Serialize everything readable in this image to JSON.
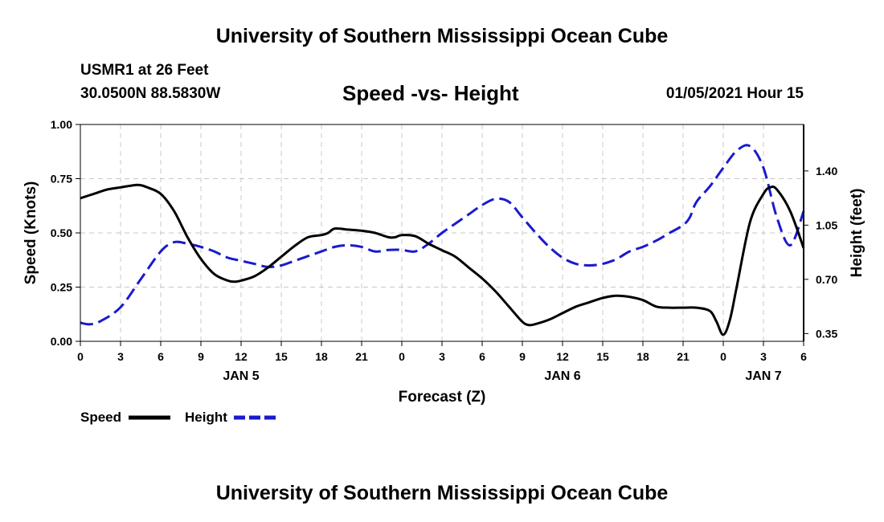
{
  "header": {
    "top_title": "University of Southern Mississippi Ocean Cube",
    "station": "USMR1 at 26 Feet",
    "coords": "30.0500N 88.5830W",
    "date": "01/05/2021 Hour 15",
    "bottom_title": "University of Southern Mississippi Ocean Cube"
  },
  "chart_data": {
    "type": "line",
    "title": "Speed -vs- Height",
    "xlabel": "Forecast (Z)",
    "ylabel": "Speed (Knots)",
    "y2label": "Height (feet)",
    "xlim": [
      0,
      54
    ],
    "ylim": [
      0,
      1.0
    ],
    "y2lim": [
      0.3,
      1.7
    ],
    "x_ticks": [
      0,
      3,
      6,
      9,
      12,
      15,
      18,
      21,
      24,
      27,
      30,
      33,
      36,
      39,
      42,
      45,
      48,
      51,
      54
    ],
    "x_tick_labels": [
      "0",
      "3",
      "6",
      "9",
      "12",
      "15",
      "18",
      "21",
      "0",
      "3",
      "6",
      "9",
      "12",
      "15",
      "18",
      "21",
      "0",
      "3",
      "6"
    ],
    "day_labels": [
      {
        "x": 12,
        "label": "JAN 5"
      },
      {
        "x": 36,
        "label": "JAN 6"
      },
      {
        "x": 51,
        "label": "JAN 7"
      }
    ],
    "y_ticks": [
      0,
      0.25,
      0.5,
      0.75,
      1.0
    ],
    "y_tick_labels": [
      "0.00",
      "0.25",
      "0.50",
      "0.75",
      "1.00"
    ],
    "y2_ticks": [
      0.35,
      0.7,
      1.05,
      1.4
    ],
    "y2_tick_labels": [
      "0.35",
      "0.70",
      "1.05",
      "1.40"
    ],
    "grid": true,
    "legend": [
      {
        "label": "Speed",
        "color": "#000000",
        "style": "solid"
      },
      {
        "label": "Height",
        "color": "#1a1acc",
        "style": "dashed"
      }
    ],
    "series": [
      {
        "name": "Speed",
        "axis": "left",
        "color": "#000000",
        "dash": "solid",
        "x": [
          0,
          1,
          2,
          3,
          4,
          4.5,
          5,
          6,
          7,
          8,
          9,
          10,
          11,
          11.5,
          12,
          13,
          14,
          15,
          16,
          17,
          18,
          18.5,
          19,
          20,
          21,
          22,
          23,
          23.5,
          24,
          25,
          26,
          27,
          28,
          29,
          30,
          31,
          32,
          33,
          33.5,
          34,
          35,
          36,
          37,
          38,
          39,
          40,
          41,
          42,
          43,
          44,
          45,
          46,
          47,
          47.5,
          48,
          48.5,
          49,
          50,
          51,
          51.5,
          52,
          53,
          54
        ],
        "y": [
          0.66,
          0.68,
          0.7,
          0.71,
          0.72,
          0.72,
          0.71,
          0.68,
          0.6,
          0.48,
          0.38,
          0.31,
          0.28,
          0.275,
          0.28,
          0.3,
          0.34,
          0.39,
          0.44,
          0.48,
          0.49,
          0.5,
          0.52,
          0.515,
          0.51,
          0.5,
          0.48,
          0.48,
          0.49,
          0.485,
          0.45,
          0.42,
          0.39,
          0.34,
          0.29,
          0.23,
          0.16,
          0.09,
          0.075,
          0.08,
          0.1,
          0.13,
          0.16,
          0.18,
          0.2,
          0.21,
          0.205,
          0.19,
          0.16,
          0.155,
          0.155,
          0.155,
          0.14,
          0.09,
          0.03,
          0.1,
          0.25,
          0.55,
          0.68,
          0.71,
          0.7,
          0.6,
          0.43
        ]
      },
      {
        "name": "Height",
        "axis": "right",
        "color": "#1a1acc",
        "dash": "dashed",
        "x": [
          0,
          0.7,
          1.5,
          3,
          4.5,
          6,
          7,
          8,
          9,
          10,
          11,
          12,
          13,
          14,
          15,
          16,
          17,
          18,
          19,
          20,
          21,
          22,
          23,
          24,
          25,
          26,
          27,
          28,
          29,
          30,
          31,
          32,
          33,
          34,
          35,
          36,
          37,
          38,
          39,
          40,
          41,
          42,
          43,
          44,
          45,
          45.5,
          46,
          47,
          48,
          49,
          50,
          51,
          52,
          53,
          54
        ],
        "y": [
          0.42,
          0.41,
          0.43,
          0.52,
          0.7,
          0.88,
          0.94,
          0.93,
          0.91,
          0.88,
          0.84,
          0.82,
          0.8,
          0.78,
          0.79,
          0.82,
          0.85,
          0.88,
          0.91,
          0.92,
          0.91,
          0.88,
          0.89,
          0.89,
          0.88,
          0.93,
          1.0,
          1.06,
          1.12,
          1.18,
          1.22,
          1.2,
          1.1,
          1.0,
          0.91,
          0.84,
          0.8,
          0.79,
          0.8,
          0.83,
          0.88,
          0.91,
          0.95,
          1.0,
          1.05,
          1.1,
          1.2,
          1.3,
          1.42,
          1.53,
          1.56,
          1.42,
          1.1,
          0.92,
          1.14
        ]
      }
    ]
  }
}
